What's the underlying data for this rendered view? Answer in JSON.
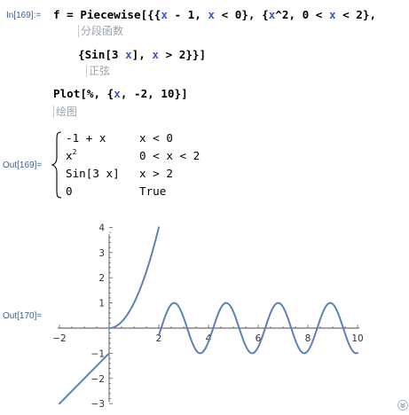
{
  "input": {
    "in_label": "In[169]:=",
    "line1_parts": [
      "f = Piecewise[{{",
      "x",
      " - 1, ",
      "x",
      " < 0}, {",
      "x",
      "^2, 0 < ",
      "x",
      " < 2},"
    ],
    "note1": "分段函数",
    "line2_parts": [
      "{Sin[3 ",
      "x",
      "], ",
      "x",
      " > 2}}]"
    ],
    "note2": "正弦",
    "line3_parts": [
      "Plot[%, {",
      "x",
      ", -2, 10}]"
    ],
    "note3": "绘图"
  },
  "output1": {
    "out_label": "Out[169]=",
    "rows": [
      {
        "expr": "-1 + x",
        "cond": "x < 0"
      },
      {
        "expr_base": "x",
        "expr_sup": "2",
        "cond": "0 < x < 2"
      },
      {
        "expr": "Sin[3 x]",
        "cond": "x > 2"
      },
      {
        "expr": "0",
        "cond": "True"
      }
    ]
  },
  "output2": {
    "out_label": "Out[170]="
  },
  "chart_data": {
    "type": "line",
    "title": "",
    "xlabel": "",
    "ylabel": "",
    "xlim": [
      -2,
      10
    ],
    "ylim": [
      -3,
      4
    ],
    "x_ticks": [
      -2,
      2,
      4,
      6,
      8,
      10
    ],
    "y_ticks": [
      4,
      3,
      2,
      1,
      -1,
      -2,
      -3
    ],
    "series": [
      {
        "color": "#5e81b5",
        "pieces": [
          {
            "domain": [
              -2,
              0
            ],
            "formula": "x - 1"
          },
          {
            "domain": [
              0,
              2
            ],
            "formula": "x^2"
          },
          {
            "domain": [
              2,
              10
            ],
            "formula": "sin(3x)"
          }
        ]
      }
    ]
  },
  "ui": {
    "scroll_icon": "double-chevron-down-icon",
    "accent": "#3a58c8",
    "label_color": "#3f5f8a",
    "note_color": "#9aa4b0"
  }
}
